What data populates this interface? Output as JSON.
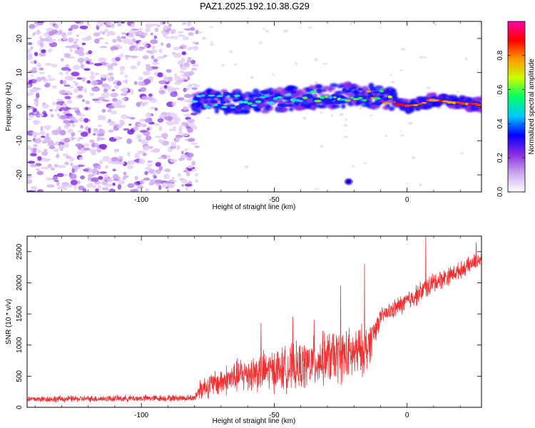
{
  "figure": {
    "title": "PAZ1.2025.192.10.38.G29"
  },
  "chart_data": [
    {
      "type": "heatmap",
      "xlabel": "Height of straight line (km)",
      "ylabel": "Frequency (Hz)",
      "xlim": [
        -143,
        28
      ],
      "ylim": [
        -25,
        25
      ],
      "xticks": [
        -100,
        -50,
        0
      ],
      "yticks": [
        -20,
        -10,
        0,
        10,
        20
      ],
      "grid": false,
      "colorbar": {
        "label": "Normalized spectral amplitude",
        "range": [
          0,
          1
        ],
        "ticks": [
          "0.0",
          "0.2",
          "0.4",
          "0.6",
          "0.8"
        ],
        "colormap": [
          "#ffffff",
          "#c9a6ee",
          "#8a2be2",
          "#0000ff",
          "#00c8ff",
          "#00ff66",
          "#c8ff00",
          "#ff9900",
          "#ff0000",
          "#ff00aa"
        ]
      },
      "features": {
        "noise_region": [
          -143,
          -79
        ],
        "signal_track": [
          {
            "x": -80,
            "f": 1.5
          },
          {
            "x": -60,
            "f": 1.5
          },
          {
            "x": -40,
            "f": 2.5
          },
          {
            "x": -20,
            "f": 3.5
          },
          {
            "x": -10,
            "f": 3
          },
          {
            "x": 0,
            "f": 0
          },
          {
            "x": 10,
            "f": 2
          },
          {
            "x": 28,
            "f": 0.5
          }
        ],
        "isolated_blob": {
          "x": -22,
          "f": -22
        }
      }
    },
    {
      "type": "line",
      "xlabel": "Height of straight line (km)",
      "ylabel": "SNR (10 * v/v)",
      "xlim": [
        -143,
        28
      ],
      "ylim": [
        0,
        2750
      ],
      "xticks": [
        -100,
        -50,
        0
      ],
      "yticks": [
        0,
        500,
        1000,
        1500,
        2000,
        2500
      ],
      "grid": false,
      "series": [
        {
          "color": "#ef3030",
          "envelope_x": [
            -143,
            -80,
            -78,
            -60,
            -40,
            -30,
            -20,
            -15,
            -10,
            0,
            10,
            20,
            28
          ],
          "mean": [
            130,
            150,
            300,
            550,
            650,
            800,
            850,
            950,
            1450,
            1700,
            2000,
            2200,
            2400
          ],
          "spread": [
            60,
            60,
            200,
            350,
            450,
            500,
            500,
            450,
            150,
            200,
            200,
            150,
            150
          ],
          "spikes": [
            {
              "x": -55,
              "y": 1350
            },
            {
              "x": -43,
              "y": 1450
            },
            {
              "x": -35,
              "y": 1400
            },
            {
              "x": -25,
              "y": 1950
            },
            {
              "x": -16,
              "y": 2300
            },
            {
              "x": 7,
              "y": 2750
            },
            {
              "x": 26,
              "y": 2650
            }
          ]
        }
      ]
    }
  ]
}
